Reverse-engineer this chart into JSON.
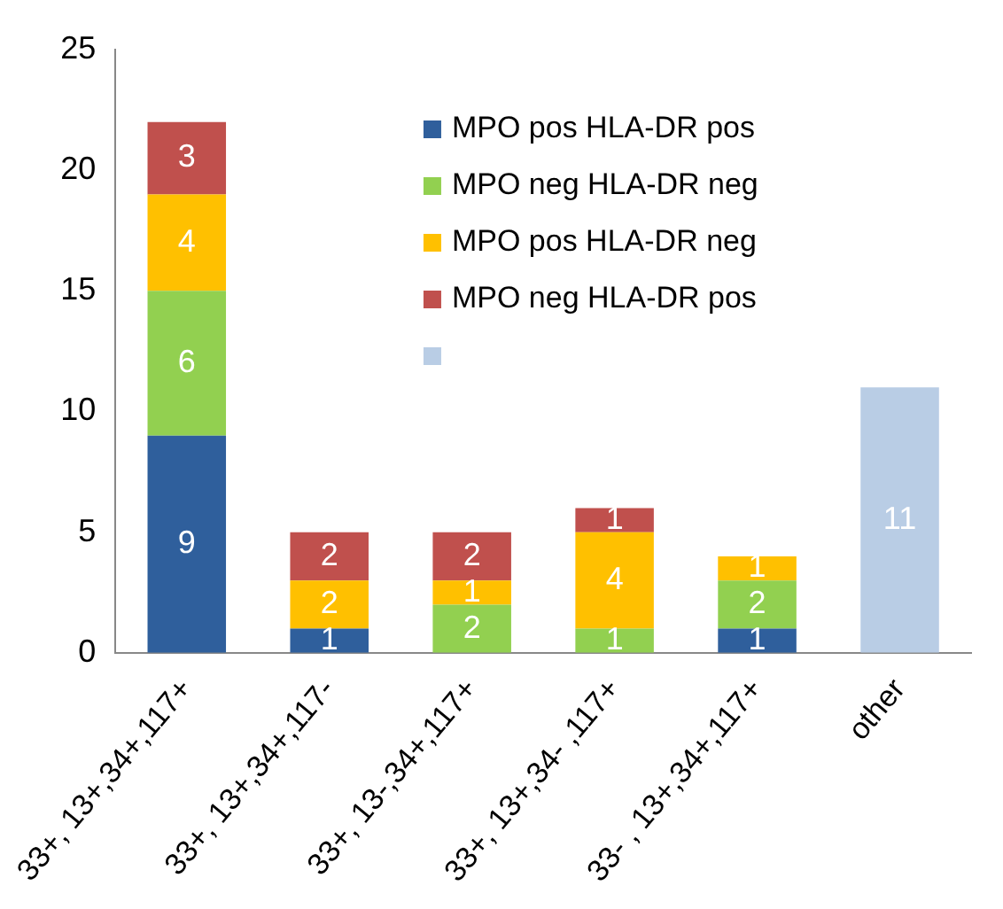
{
  "chart_data": {
    "type": "bar",
    "stacked": true,
    "categories": [
      "33+, 13+,34+,117+",
      "33+, 13+,34+,117-",
      "33+, 13-,34+,117+",
      "33+, 13+,34- ,117+",
      "33- , 13+,34+,117+",
      "other"
    ],
    "series": [
      {
        "name": "MPO pos HLA-DR pos",
        "color": "#2f5f9c",
        "values": [
          9,
          1,
          null,
          null,
          1,
          null
        ]
      },
      {
        "name": "MPO neg HLA-DR neg",
        "color": "#92d050",
        "values": [
          6,
          null,
          2,
          1,
          2,
          null
        ]
      },
      {
        "name": "MPO pos HLA-DR neg",
        "color": "#ffc000",
        "values": [
          4,
          2,
          1,
          4,
          1,
          null
        ]
      },
      {
        "name": "MPO neg HLA-DR pos",
        "color": "#c0504d",
        "values": [
          3,
          2,
          2,
          1,
          null,
          null
        ]
      },
      {
        "color": "#b9cde5",
        "values": [
          null,
          null,
          null,
          null,
          null,
          11
        ]
      }
    ],
    "ylim": [
      0,
      25
    ],
    "yticks": [
      0,
      5,
      10,
      15,
      20,
      25
    ],
    "grid": false,
    "legend": "top right",
    "data_labels": true
  }
}
